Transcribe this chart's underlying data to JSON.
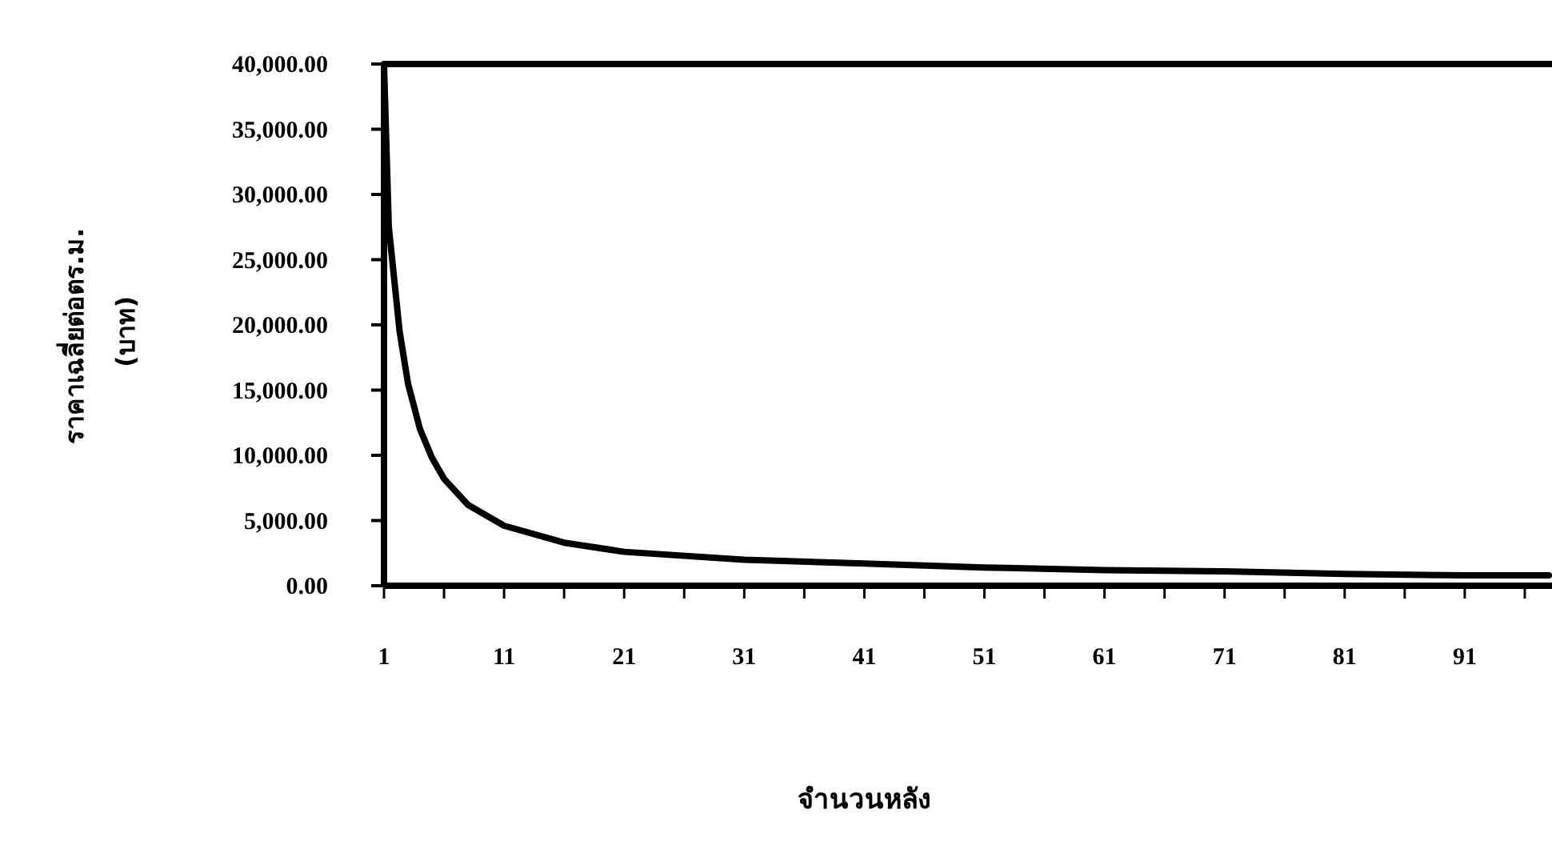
{
  "chart_data": {
    "type": "line",
    "xlabel": "จำนวนหลัง",
    "ylabel": "ราคาเฉลี่ยต่อตร.ม. (บาท)",
    "x": [
      1,
      1.4,
      2.3,
      3,
      4,
      5,
      6,
      8,
      11,
      16,
      21,
      31,
      41,
      51,
      61,
      71,
      81,
      91,
      98
    ],
    "series": [
      {
        "color": "#000000",
        "values": [
          40000,
          27500,
          19500,
          15500,
          12000,
          9800,
          8200,
          6200,
          4600,
          3300,
          2600,
          2000,
          1700,
          1400,
          1200,
          1100,
          900,
          800,
          800
        ]
      }
    ],
    "xlim": [
      1,
      98
    ],
    "xticks": [
      1,
      {
        "value": 6,
        "label": null
      },
      11,
      {
        "value": 16,
        "label": null
      },
      21,
      {
        "value": 26,
        "label": null
      },
      31,
      {
        "value": 36,
        "label": null
      },
      41,
      {
        "value": 46,
        "label": null
      },
      51,
      {
        "value": 56,
        "label": null
      },
      61,
      {
        "value": 66,
        "label": null
      },
      71,
      {
        "value": 76,
        "label": null
      },
      81,
      {
        "value": 86,
        "label": null
      },
      91,
      {
        "value": 96,
        "label": null
      }
    ],
    "ylim": [
      0,
      40000
    ],
    "yticks": [
      {
        "value": 0,
        "label": "0.00"
      },
      {
        "value": 5000,
        "label": "5,000.00"
      },
      {
        "value": 10000,
        "label": "10,000.00"
      },
      {
        "value": 15000,
        "label": "15,000.00"
      },
      {
        "value": 20000,
        "label": "20,000.00"
      },
      {
        "value": 25000,
        "label": "25,000.00"
      },
      {
        "value": 30000,
        "label": "30,000.00"
      },
      {
        "value": 35000,
        "label": "35,000.00"
      },
      {
        "value": 40000,
        "label": "40,000.00"
      }
    ],
    "grid": false,
    "marker": "none",
    "line_style": "solid"
  }
}
